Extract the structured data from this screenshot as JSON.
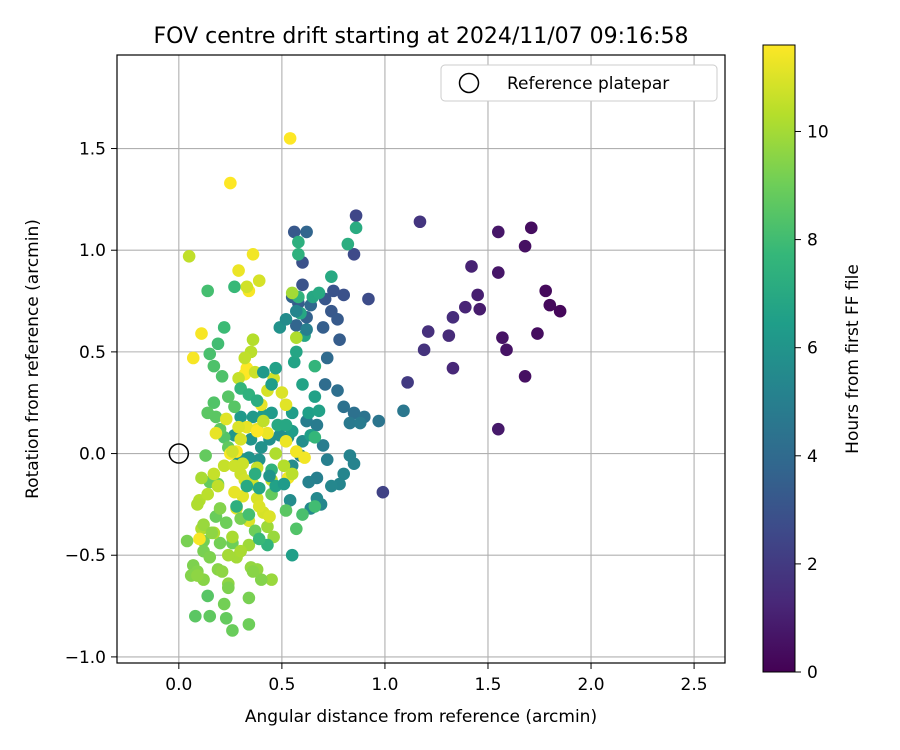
{
  "chart_data": {
    "type": "scatter",
    "title": "FOV centre drift starting at 2024/11/07 09:16:58",
    "xlabel": "Angular distance from reference (arcmin)",
    "ylabel": "Rotation from reference (arcmin)",
    "xlim": [
      -0.3,
      2.65
    ],
    "ylim": [
      -1.03,
      1.96
    ],
    "xticks": [
      "0.0",
      "0.5",
      "1.0",
      "1.5",
      "2.0",
      "2.5"
    ],
    "yticks": [
      "−1.0",
      "−0.5",
      "0.0",
      "0.5",
      "1.0",
      "1.5"
    ],
    "grid": true,
    "legend": {
      "position": "top-right",
      "label": "Reference platepar"
    },
    "reference_point": {
      "x": 0.0,
      "y": 0.0
    },
    "colorbar": {
      "label": "Hours from first FF file",
      "colormap": "viridis",
      "range": [
        0,
        11.6
      ],
      "ticks": [
        "0",
        "2",
        "4",
        "6",
        "8",
        "10"
      ]
    },
    "colormap_stops": [
      "#440154",
      "#482878",
      "#3e4989",
      "#31688e",
      "#26828e",
      "#1f9e89",
      "#35b779",
      "#6ece58",
      "#b5de2b",
      "#fde725"
    ],
    "points": [
      [
        1.85,
        0.7,
        0.2
      ],
      [
        1.8,
        0.73,
        0.3
      ],
      [
        1.78,
        0.8,
        0.3
      ],
      [
        1.74,
        0.59,
        0.4
      ],
      [
        1.71,
        1.11,
        0.4
      ],
      [
        1.68,
        1.02,
        0.5
      ],
      [
        1.68,
        0.38,
        0.5
      ],
      [
        1.59,
        0.51,
        0.6
      ],
      [
        1.57,
        0.57,
        0.6
      ],
      [
        1.55,
        0.89,
        0.7
      ],
      [
        1.55,
        1.09,
        0.7
      ],
      [
        1.55,
        0.12,
        0.8
      ],
      [
        1.46,
        0.71,
        0.9
      ],
      [
        1.45,
        0.78,
        1.0
      ],
      [
        1.42,
        0.92,
        1.1
      ],
      [
        1.39,
        0.72,
        1.2
      ],
      [
        1.33,
        0.42,
        1.3
      ],
      [
        1.31,
        0.58,
        1.4
      ],
      [
        1.33,
        0.67,
        1.5
      ],
      [
        1.21,
        0.6,
        1.6
      ],
      [
        1.19,
        0.51,
        1.7
      ],
      [
        1.17,
        1.14,
        1.8
      ],
      [
        1.11,
        0.35,
        2.0
      ],
      [
        0.99,
        -0.19,
        2.3
      ],
      [
        0.86,
        1.17,
        2.5
      ],
      [
        0.85,
        0.98,
        2.6
      ],
      [
        0.92,
        0.76,
        2.7
      ],
      [
        0.8,
        0.78,
        2.9
      ],
      [
        0.75,
        0.8,
        3.0
      ],
      [
        0.71,
        0.76,
        3.1
      ],
      [
        0.74,
        0.7,
        3.2
      ],
      [
        0.77,
        0.66,
        3.3
      ],
      [
        0.78,
        0.56,
        3.4
      ],
      [
        0.7,
        0.62,
        3.5
      ],
      [
        0.6,
        0.94,
        2.9
      ],
      [
        0.6,
        0.83,
        3.0
      ],
      [
        0.56,
        1.09,
        3.2
      ],
      [
        0.58,
        0.74,
        3.4
      ],
      [
        0.62,
        0.67,
        3.6
      ],
      [
        0.55,
        0.77,
        3.7
      ],
      [
        0.57,
        0.63,
        3.8
      ],
      [
        0.64,
        0.73,
        3.9
      ],
      [
        0.72,
        0.47,
        4.0
      ],
      [
        0.71,
        0.34,
        4.1
      ],
      [
        0.77,
        0.31,
        4.2
      ],
      [
        0.8,
        0.23,
        4.3
      ],
      [
        0.85,
        0.2,
        4.3
      ],
      [
        0.9,
        0.18,
        4.4
      ],
      [
        0.97,
        0.16,
        4.5
      ],
      [
        1.09,
        0.21,
        4.6
      ],
      [
        0.83,
        0.15,
        4.7
      ],
      [
        0.88,
        0.15,
        4.8
      ],
      [
        0.67,
        0.14,
        4.8
      ],
      [
        0.62,
        0.16,
        4.9
      ],
      [
        0.7,
        0.04,
        4.9
      ],
      [
        0.72,
        -0.03,
        5.0
      ],
      [
        0.67,
        -0.12,
        5.0
      ],
      [
        0.63,
        -0.14,
        5.1
      ],
      [
        0.59,
        -0.01,
        5.1
      ],
      [
        0.83,
        -0.01,
        5.2
      ],
      [
        0.85,
        -0.05,
        5.2
      ],
      [
        0.8,
        -0.1,
        5.3
      ],
      [
        0.78,
        -0.15,
        5.3
      ],
      [
        0.74,
        -0.16,
        5.4
      ],
      [
        0.69,
        -0.25,
        5.4
      ],
      [
        0.67,
        -0.22,
        5.5
      ],
      [
        0.64,
        -0.27,
        5.5
      ],
      [
        0.54,
        -0.23,
        5.6
      ],
      [
        0.55,
        -0.06,
        5.6
      ],
      [
        0.6,
        0.06,
        5.7
      ],
      [
        0.53,
        0.08,
        5.7
      ],
      [
        0.49,
        0.09,
        5.8
      ],
      [
        0.44,
        0.07,
        5.8
      ],
      [
        0.4,
        0.03,
        5.9
      ],
      [
        0.39,
        -0.03,
        5.9
      ],
      [
        0.35,
        0.07,
        6.0
      ],
      [
        0.34,
        -0.02,
        6.0
      ],
      [
        0.29,
        -0.02,
        6.1
      ],
      [
        0.27,
        0.09,
        6.1
      ],
      [
        0.3,
        0.18,
        6.2
      ],
      [
        0.36,
        0.18,
        6.2
      ],
      [
        0.41,
        0.19,
        6.3
      ],
      [
        0.45,
        0.2,
        6.3
      ],
      [
        0.55,
        0.2,
        6.4
      ],
      [
        0.55,
        0.11,
        6.4
      ],
      [
        0.64,
        0.09,
        6.5
      ],
      [
        0.63,
        0.2,
        6.5
      ],
      [
        0.68,
        0.21,
        6.6
      ],
      [
        0.66,
        0.28,
        6.6
      ],
      [
        0.6,
        0.34,
        6.7
      ],
      [
        0.56,
        0.45,
        6.7
      ],
      [
        0.57,
        0.5,
        6.8
      ],
      [
        0.61,
        0.58,
        6.8
      ],
      [
        0.59,
        0.69,
        6.9
      ],
      [
        0.65,
        0.77,
        6.9
      ],
      [
        0.68,
        0.79,
        7.0
      ],
      [
        0.74,
        0.87,
        7.0
      ],
      [
        0.86,
        1.11,
        7.1
      ],
      [
        0.82,
        1.03,
        7.2
      ],
      [
        0.58,
        1.04,
        7.3
      ],
      [
        0.58,
        0.98,
        7.4
      ],
      [
        0.58,
        0.77,
        7.5
      ],
      [
        0.66,
        0.43,
        7.6
      ],
      [
        0.66,
        0.08,
        7.7
      ],
      [
        0.27,
        0.82,
        7.8
      ],
      [
        0.22,
        0.62,
        7.9
      ],
      [
        0.19,
        0.54,
        8.0
      ],
      [
        0.14,
        0.8,
        8.1
      ],
      [
        0.15,
        0.49,
        8.2
      ],
      [
        0.17,
        0.43,
        8.3
      ],
      [
        0.21,
        0.38,
        8.3
      ],
      [
        0.22,
        0.08,
        8.4
      ],
      [
        0.17,
        0.25,
        8.4
      ],
      [
        0.27,
        0.23,
        8.5
      ],
      [
        0.24,
        0.28,
        8.5
      ],
      [
        0.18,
        0.18,
        8.6
      ],
      [
        0.14,
        0.2,
        8.6
      ],
      [
        0.2,
        0.12,
        8.7
      ],
      [
        0.24,
        0.03,
        8.7
      ],
      [
        0.13,
        -0.01,
        8.8
      ],
      [
        0.15,
        -0.14,
        8.8
      ],
      [
        0.19,
        -0.15,
        8.9
      ],
      [
        0.18,
        -0.31,
        8.9
      ],
      [
        0.23,
        -0.34,
        9.0
      ],
      [
        0.26,
        -0.44,
        9.0
      ],
      [
        0.2,
        -0.44,
        9.1
      ],
      [
        0.12,
        -0.43,
        9.1
      ],
      [
        0.04,
        -0.43,
        9.2
      ],
      [
        0.12,
        -0.48,
        9.2
      ],
      [
        0.15,
        -0.51,
        9.3
      ],
      [
        0.07,
        -0.55,
        9.3
      ],
      [
        0.09,
        -0.58,
        9.4
      ],
      [
        0.06,
        -0.6,
        9.4
      ],
      [
        0.12,
        -0.62,
        9.5
      ],
      [
        0.19,
        -0.57,
        9.5
      ],
      [
        0.21,
        -0.58,
        9.6
      ],
      [
        0.24,
        -0.64,
        9.6
      ],
      [
        0.35,
        -0.56,
        9.7
      ],
      [
        0.38,
        -0.57,
        9.7
      ],
      [
        0.45,
        -0.62,
        9.8
      ],
      [
        0.46,
        -0.41,
        9.8
      ],
      [
        0.43,
        -0.36,
        9.9
      ],
      [
        0.34,
        -0.45,
        9.9
      ],
      [
        0.28,
        -0.51,
        10.0
      ],
      [
        0.24,
        -0.5,
        10.0
      ],
      [
        0.3,
        -0.48,
        10.1
      ],
      [
        0.26,
        -0.41,
        10.1
      ],
      [
        0.17,
        -0.39,
        10.2
      ],
      [
        0.11,
        -0.37,
        10.2
      ],
      [
        0.14,
        -0.7,
        8.5
      ],
      [
        0.08,
        -0.8,
        8.6
      ],
      [
        0.15,
        -0.8,
        8.7
      ],
      [
        0.23,
        -0.81,
        8.8
      ],
      [
        0.26,
        -0.87,
        8.9
      ],
      [
        0.34,
        -0.84,
        9.0
      ],
      [
        0.22,
        -0.74,
        9.1
      ],
      [
        0.34,
        -0.71,
        9.2
      ],
      [
        0.24,
        -0.66,
        9.3
      ],
      [
        0.4,
        -0.62,
        9.4
      ],
      [
        0.36,
        -0.58,
        9.5
      ],
      [
        0.09,
        -0.6,
        9.6
      ],
      [
        0.1,
        -0.23,
        10.3
      ],
      [
        0.14,
        -0.2,
        10.4
      ],
      [
        0.19,
        -0.16,
        10.5
      ],
      [
        0.17,
        -0.1,
        10.6
      ],
      [
        0.22,
        -0.06,
        10.6
      ],
      [
        0.27,
        -0.06,
        10.7
      ],
      [
        0.3,
        -0.1,
        10.7
      ],
      [
        0.32,
        -0.13,
        10.8
      ],
      [
        0.36,
        -0.15,
        10.8
      ],
      [
        0.38,
        -0.22,
        10.9
      ],
      [
        0.41,
        -0.29,
        10.9
      ],
      [
        0.44,
        -0.31,
        11.0
      ],
      [
        0.39,
        -0.26,
        11.0
      ],
      [
        0.34,
        -0.33,
        11.0
      ],
      [
        0.28,
        -0.27,
        11.1
      ],
      [
        0.31,
        -0.21,
        11.1
      ],
      [
        0.27,
        -0.19,
        11.2
      ],
      [
        0.33,
        0.13,
        11.2
      ],
      [
        0.38,
        0.12,
        11.3
      ],
      [
        0.43,
        0.1,
        11.3
      ],
      [
        0.52,
        0.06,
        11.3
      ],
      [
        0.57,
        0.01,
        11.4
      ],
      [
        0.61,
        -0.02,
        11.4
      ],
      [
        0.53,
        -0.12,
        11.4
      ],
      [
        0.1,
        -0.42,
        11.5
      ],
      [
        0.07,
        0.47,
        11.5
      ],
      [
        0.11,
        0.59,
        11.5
      ],
      [
        0.25,
        0.0,
        11.5
      ],
      [
        0.28,
        0.01,
        11.6
      ],
      [
        0.38,
        0.11,
        11.6
      ],
      [
        0.32,
        0.39,
        11.6
      ],
      [
        0.33,
        0.42,
        11.6
      ],
      [
        0.34,
        0.8,
        11.5
      ],
      [
        0.36,
        0.98,
        11.4
      ],
      [
        0.29,
        0.9,
        11.3
      ],
      [
        0.25,
        1.33,
        11.6
      ],
      [
        0.54,
        1.55,
        11.6
      ],
      [
        0.05,
        0.97,
        10.5
      ],
      [
        0.33,
        0.82,
        10.8
      ],
      [
        0.39,
        0.85,
        10.9
      ],
      [
        0.55,
        0.79,
        10.0
      ],
      [
        0.57,
        0.57,
        10.2
      ],
      [
        0.36,
        0.56,
        10.3
      ],
      [
        0.35,
        0.5,
        10.4
      ],
      [
        0.32,
        0.47,
        10.5
      ],
      [
        0.29,
        0.37,
        10.6
      ],
      [
        0.37,
        0.4,
        10.7
      ],
      [
        0.46,
        0.37,
        10.8
      ],
      [
        0.43,
        0.31,
        10.9
      ],
      [
        0.5,
        0.3,
        11.0
      ],
      [
        0.52,
        0.24,
        11.1
      ],
      [
        0.4,
        0.24,
        11.2
      ],
      [
        0.41,
        0.16,
        10.5
      ],
      [
        0.47,
        0.0,
        10.2
      ],
      [
        0.51,
        -0.06,
        10.3
      ],
      [
        0.55,
        -0.1,
        10.4
      ],
      [
        0.45,
        -0.13,
        10.5
      ],
      [
        0.38,
        -0.07,
        10.6
      ],
      [
        0.31,
        -0.05,
        10.7
      ],
      [
        0.26,
        0.01,
        10.8
      ],
      [
        0.3,
        0.07,
        10.9
      ],
      [
        0.29,
        0.13,
        11.0
      ],
      [
        0.23,
        0.17,
        11.1
      ],
      [
        0.18,
        0.1,
        11.2
      ],
      [
        0.11,
        -0.12,
        10.1
      ],
      [
        0.09,
        -0.25,
        10.2
      ],
      [
        0.12,
        -0.35,
        9.8
      ],
      [
        0.16,
        -0.39,
        9.6
      ],
      [
        0.2,
        -0.27,
        9.4
      ],
      [
        0.3,
        -0.32,
        9.2
      ],
      [
        0.37,
        -0.38,
        9.0
      ],
      [
        0.45,
        -0.2,
        8.8
      ],
      [
        0.52,
        -0.28,
        8.6
      ],
      [
        0.57,
        -0.37,
        8.4
      ],
      [
        0.6,
        -0.3,
        8.2
      ],
      [
        0.66,
        -0.26,
        8.0
      ],
      [
        0.55,
        -0.5,
        6.5
      ],
      [
        0.43,
        -0.45,
        7.5
      ],
      [
        0.39,
        -0.42,
        7.8
      ],
      [
        0.34,
        -0.3,
        8.1
      ],
      [
        0.45,
        -0.08,
        7.5
      ],
      [
        0.37,
        -0.1,
        7.2
      ],
      [
        0.33,
        -0.16,
        7.0
      ],
      [
        0.39,
        -0.17,
        6.8
      ],
      [
        0.47,
        -0.16,
        6.6
      ],
      [
        0.51,
        -0.15,
        6.3
      ],
      [
        0.44,
        -0.11,
        6.0
      ],
      [
        0.28,
        -0.26,
        7.3
      ],
      [
        0.3,
        0.32,
        7.6
      ],
      [
        0.34,
        0.29,
        7.4
      ],
      [
        0.38,
        0.26,
        7.2
      ],
      [
        0.48,
        0.14,
        7.0
      ],
      [
        0.52,
        0.14,
        6.9
      ],
      [
        0.47,
        0.42,
        6.6
      ],
      [
        0.45,
        0.34,
        6.4
      ],
      [
        0.41,
        0.4,
        6.2
      ],
      [
        0.49,
        0.62,
        5.9
      ],
      [
        0.52,
        0.66,
        5.6
      ],
      [
        0.57,
        0.7,
        5.3
      ],
      [
        0.62,
        0.61,
        5.0
      ],
      [
        0.62,
        1.09,
        3.8
      ]
    ]
  }
}
